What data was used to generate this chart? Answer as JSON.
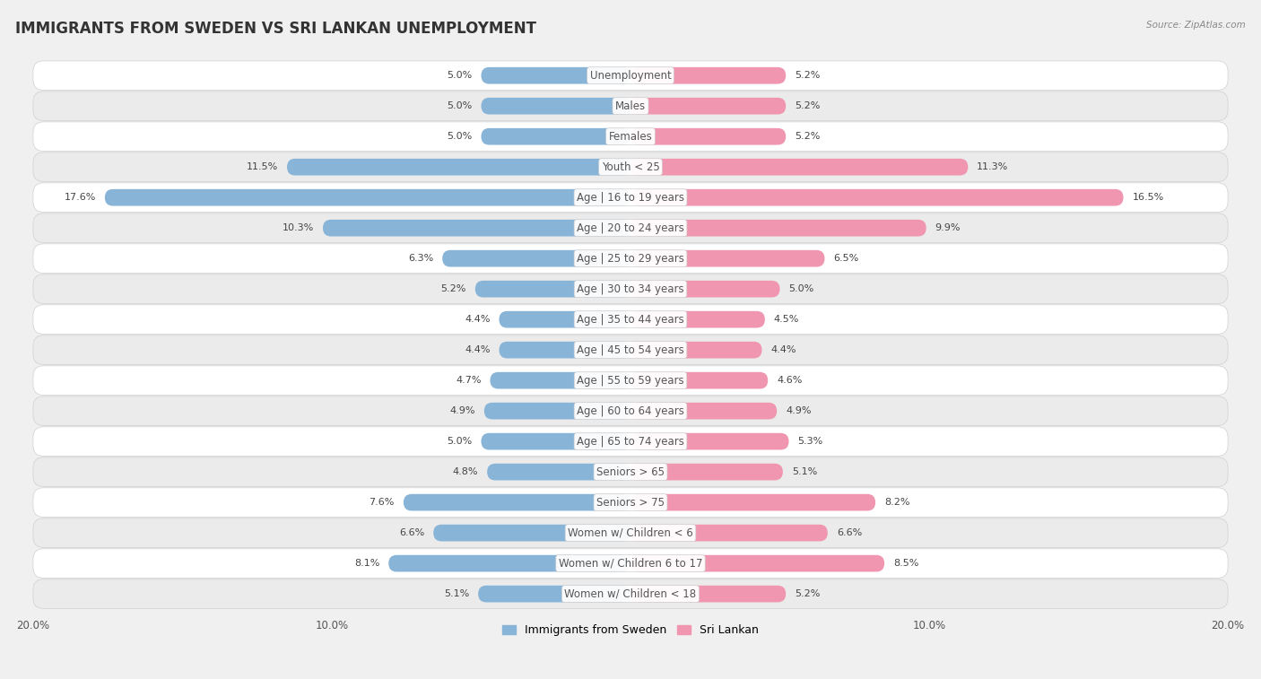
{
  "title": "IMMIGRANTS FROM SWEDEN VS SRI LANKAN UNEMPLOYMENT",
  "source": "Source: ZipAtlas.com",
  "categories": [
    "Unemployment",
    "Males",
    "Females",
    "Youth < 25",
    "Age | 16 to 19 years",
    "Age | 20 to 24 years",
    "Age | 25 to 29 years",
    "Age | 30 to 34 years",
    "Age | 35 to 44 years",
    "Age | 45 to 54 years",
    "Age | 55 to 59 years",
    "Age | 60 to 64 years",
    "Age | 65 to 74 years",
    "Seniors > 65",
    "Seniors > 75",
    "Women w/ Children < 6",
    "Women w/ Children 6 to 17",
    "Women w/ Children < 18"
  ],
  "sweden_values": [
    5.0,
    5.0,
    5.0,
    11.5,
    17.6,
    10.3,
    6.3,
    5.2,
    4.4,
    4.4,
    4.7,
    4.9,
    5.0,
    4.8,
    7.6,
    6.6,
    8.1,
    5.1
  ],
  "srilankan_values": [
    5.2,
    5.2,
    5.2,
    11.3,
    16.5,
    9.9,
    6.5,
    5.0,
    4.5,
    4.4,
    4.6,
    4.9,
    5.3,
    5.1,
    8.2,
    6.6,
    8.5,
    5.2
  ],
  "sweden_color": "#88b4d8",
  "srilankan_color": "#f096b0",
  "sweden_label": "Immigrants from Sweden",
  "srilankan_label": "Sri Lankan",
  "axis_max": 20.0,
  "bg_color": "#f0f0f0",
  "row_color_odd": "#ffffff",
  "row_color_even": "#ebebeb",
  "title_fontsize": 12,
  "label_fontsize": 8.5,
  "value_fontsize": 8.0
}
